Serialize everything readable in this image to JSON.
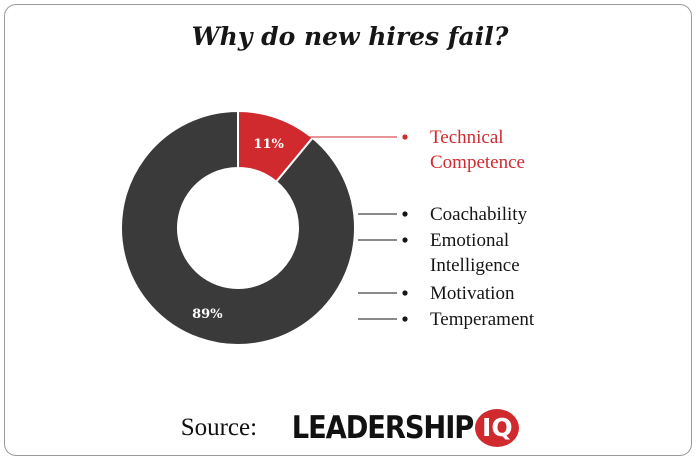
{
  "title": "Why do new hires fail?",
  "colors": {
    "highlight": "#d02a2f",
    "dark": "#3a3a3a",
    "text": "#161616"
  },
  "chart_data": {
    "type": "pie",
    "donut": true,
    "title": "Why do new hires fail?",
    "slices": [
      {
        "label": "Technical Competence",
        "value": 11,
        "value_label": "11%",
        "color": "#d02a2f"
      },
      {
        "label": "Coachability, Emotional Intelligence, Motivation, Temperament",
        "value": 89,
        "value_label": "89%",
        "color": "#3a3a3a"
      }
    ],
    "legend_items": [
      {
        "lines": [
          "Technical",
          "Competence"
        ],
        "color": "#d02a2f",
        "slice": 0
      },
      {
        "lines": [
          "Coachability"
        ],
        "color": "#161616",
        "slice": 1
      },
      {
        "lines": [
          "Emotional",
          "Intelligence"
        ],
        "color": "#161616",
        "slice": 1
      },
      {
        "lines": [
          "Motivation"
        ],
        "color": "#161616",
        "slice": 1
      },
      {
        "lines": [
          "Temperament"
        ],
        "color": "#161616",
        "slice": 1
      }
    ],
    "legend_placement": "right"
  },
  "source": {
    "prefix": "Source:",
    "brand": "LEADERSHIP",
    "brand_badge": "IQ"
  }
}
